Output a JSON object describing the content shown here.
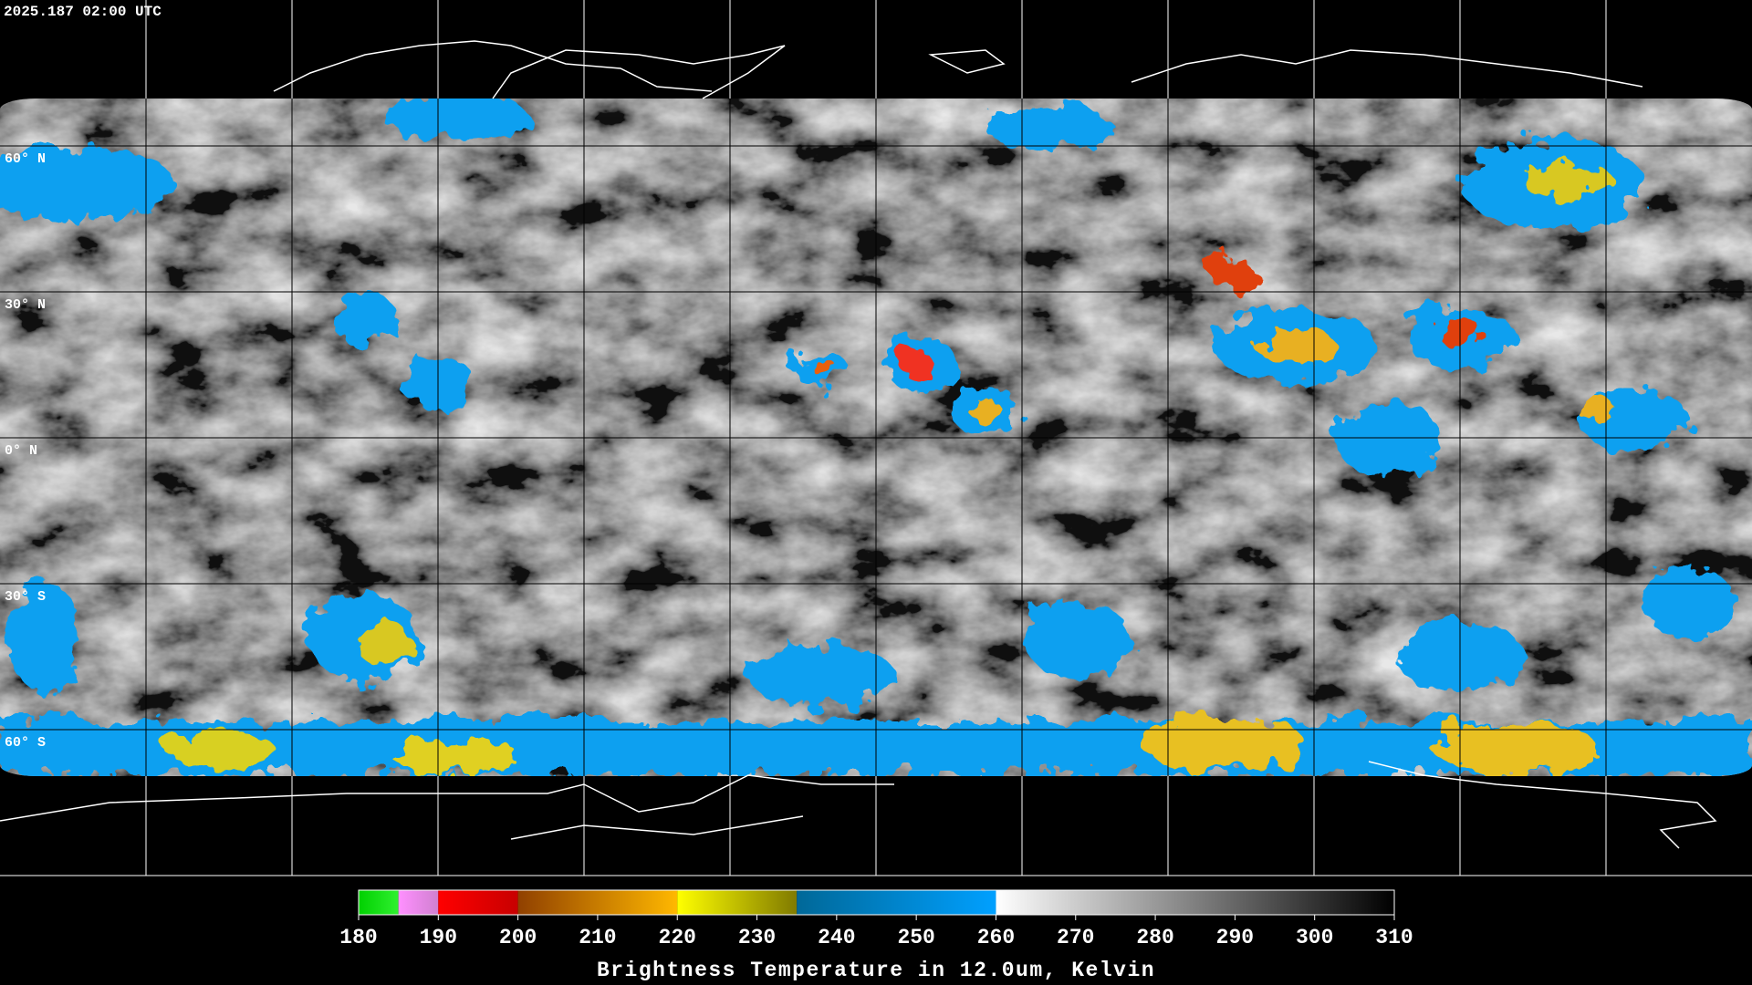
{
  "header": {
    "timestamp": "2025.187 02:00 UTC"
  },
  "map": {
    "ylim": [
      -90,
      90
    ],
    "latitude_labels": [
      {
        "value": 60,
        "label": "60° N"
      },
      {
        "value": 30,
        "label": "30° N"
      },
      {
        "value": 0,
        "label": "0° N"
      },
      {
        "value": -30,
        "label": "30° S"
      },
      {
        "value": -60,
        "label": "60° S"
      }
    ]
  },
  "colorbar": {
    "title": "Brightness Temperature in 12.0um, Kelvin",
    "lim": [
      180,
      310
    ],
    "ticks": [
      180,
      190,
      200,
      210,
      220,
      230,
      240,
      250,
      260,
      270,
      280,
      290,
      300,
      310
    ],
    "colormap": [
      {
        "from": 180,
        "to": 185,
        "colors": [
          "#00d000",
          "#30f030"
        ]
      },
      {
        "from": 185,
        "to": 190,
        "colors": [
          "#ff90ff",
          "#d080d0"
        ]
      },
      {
        "from": 190,
        "to": 200,
        "colors": [
          "#ff0000",
          "#c80000"
        ]
      },
      {
        "from": 200,
        "to": 220,
        "colors": [
          "#904000",
          "#ffb800"
        ]
      },
      {
        "from": 220,
        "to": 235,
        "colors": [
          "#ffff00",
          "#807a00"
        ]
      },
      {
        "from": 235,
        "to": 260,
        "colors": [
          "#006898",
          "#00a0ff"
        ]
      },
      {
        "from": 260,
        "to": 310,
        "colors": [
          "#ffffff",
          "#000000"
        ]
      }
    ]
  }
}
